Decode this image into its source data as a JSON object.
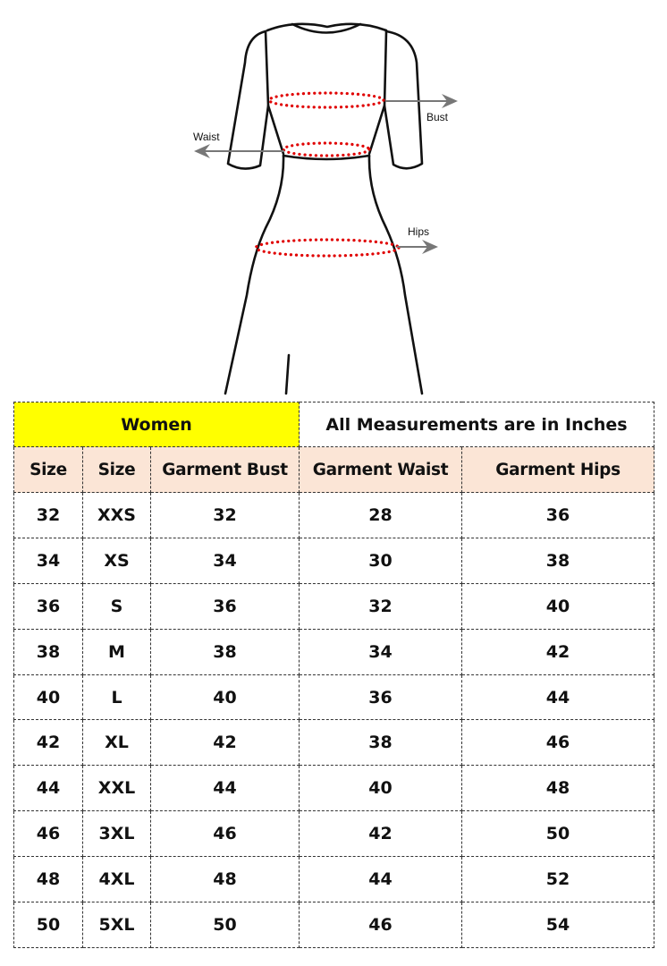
{
  "diagram": {
    "labels": {
      "bust": "Bust",
      "waist": "Waist",
      "hips": "Hips"
    },
    "colors": {
      "outline": "#111111",
      "measure_dots": "#e00000",
      "arrow": "#777777"
    }
  },
  "table": {
    "group_label": "Women",
    "note": "All Measurements are in Inches",
    "headers": [
      "Size",
      "Size",
      "Garment Bust",
      "Garment Waist",
      "Garment Hips"
    ],
    "rows": [
      [
        "32",
        "XXS",
        "32",
        "28",
        "36"
      ],
      [
        "34",
        "XS",
        "34",
        "30",
        "38"
      ],
      [
        "36",
        "S",
        "36",
        "32",
        "40"
      ],
      [
        "38",
        "M",
        "38",
        "34",
        "42"
      ],
      [
        "40",
        "L",
        "40",
        "36",
        "44"
      ],
      [
        "42",
        "XL",
        "42",
        "38",
        "46"
      ],
      [
        "44",
        "XXL",
        "44",
        "40",
        "48"
      ],
      [
        "46",
        "3XL",
        "46",
        "42",
        "50"
      ],
      [
        "48",
        "4XL",
        "48",
        "44",
        "52"
      ],
      [
        "50",
        "5XL",
        "50",
        "46",
        "54"
      ]
    ],
    "colors": {
      "group_bg": "#ffff00",
      "header_bg": "#fbe5d6"
    }
  }
}
